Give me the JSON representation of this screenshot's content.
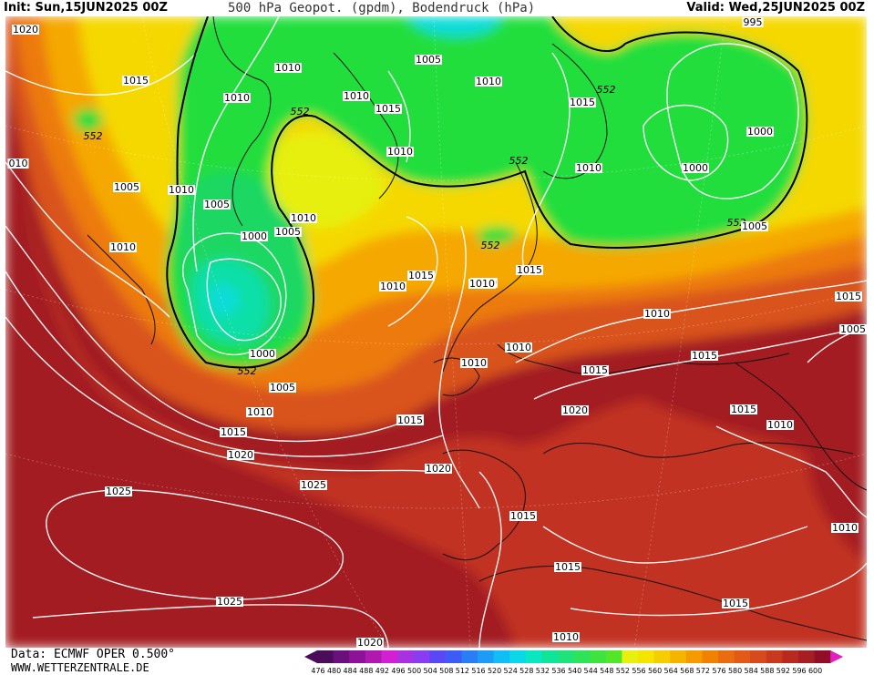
{
  "header": {
    "init": "Init: Sun,15JUN2025 00Z",
    "title": "500 hPa Geopot. (gpdm), Bodendruck (hPa)",
    "valid": "Valid: Wed,25JUN2025 00Z"
  },
  "footer": {
    "data_source": "Data: ECMWF OPER 0.500°",
    "website": "WWW.WETTERZENTRALE.DE"
  },
  "colorbar": {
    "labels": [
      "476",
      "480",
      "484",
      "488",
      "492",
      "496",
      "500",
      "504",
      "508",
      "512",
      "516",
      "520",
      "524",
      "528",
      "532",
      "536",
      "540",
      "544",
      "548",
      "552",
      "556",
      "560",
      "564",
      "568",
      "572",
      "576",
      "580",
      "584",
      "588",
      "592",
      "596",
      "600"
    ],
    "colors": [
      "#4b0d5a",
      "#6a0f7c",
      "#8c1398",
      "#b019b0",
      "#d11fd1",
      "#a832e0",
      "#8a3cf0",
      "#5a48f5",
      "#3c5cf5",
      "#2a7ef5",
      "#1c9cf5",
      "#10bdf5",
      "#0ad8e8",
      "#0ae6c0",
      "#10e39a",
      "#1ee37a",
      "#2ee35a",
      "#3fe340",
      "#52e52a",
      "#e8f010",
      "#f5e400",
      "#f5cd00",
      "#f5b400",
      "#f59a00",
      "#f08200",
      "#e96c10",
      "#e25a18",
      "#d64a1c",
      "#c83a1e",
      "#b82a20",
      "#a41e22",
      "#900f26"
    ]
  },
  "map": {
    "colors": {
      "deep_red": "#a31a24",
      "red": "#c13322",
      "dark_orange": "#d9521c",
      "orange": "#ec7a10",
      "light_orange": "#f5a800",
      "yellow": "#f5d800",
      "lime": "#e6ef10",
      "green": "#22de3e",
      "green2": "#1fd862",
      "teal": "#10dfa8",
      "cyan": "#0adcd8"
    },
    "geopotential_labels": [
      {
        "text": "552"
      },
      {
        "text": "552"
      },
      {
        "text": "552"
      },
      {
        "text": "552"
      },
      {
        "text": "552"
      },
      {
        "text": "552"
      },
      {
        "text": "552"
      }
    ],
    "pressure_labels": [
      {
        "text": "1020"
      },
      {
        "text": "1015"
      },
      {
        "text": "010"
      },
      {
        "text": "1005"
      },
      {
        "text": "1010"
      },
      {
        "text": "1010"
      },
      {
        "text": "1010"
      },
      {
        "text": "1005"
      },
      {
        "text": "1010"
      },
      {
        "text": "1000"
      },
      {
        "text": "1005"
      },
      {
        "text": "1010"
      },
      {
        "text": "1015"
      },
      {
        "text": "1005"
      },
      {
        "text": "1010"
      },
      {
        "text": "1010"
      },
      {
        "text": "1010"
      },
      {
        "text": "1015"
      },
      {
        "text": "1010"
      },
      {
        "text": "1015"
      },
      {
        "text": "1010"
      },
      {
        "text": "1000"
      },
      {
        "text": "1000"
      },
      {
        "text": "995"
      },
      {
        "text": "1005"
      },
      {
        "text": "1015"
      },
      {
        "text": "1010"
      },
      {
        "text": "1010"
      },
      {
        "text": "1015"
      },
      {
        "text": "1005"
      },
      {
        "text": "1000"
      },
      {
        "text": "1010"
      },
      {
        "text": "1005"
      },
      {
        "text": "1010"
      },
      {
        "text": "1015"
      },
      {
        "text": "1015"
      },
      {
        "text": "1015"
      },
      {
        "text": "1020"
      },
      {
        "text": "1015"
      },
      {
        "text": "1010"
      },
      {
        "text": "1015"
      },
      {
        "text": "1010"
      },
      {
        "text": "1015"
      },
      {
        "text": "1020"
      },
      {
        "text": "1020"
      },
      {
        "text": "1025"
      },
      {
        "text": "1025"
      },
      {
        "text": "1015"
      },
      {
        "text": "1015"
      },
      {
        "text": "1025"
      },
      {
        "text": "1015"
      },
      {
        "text": "1010"
      },
      {
        "text": "1010"
      },
      {
        "text": "1020"
      },
      {
        "text": "1010"
      }
    ]
  }
}
